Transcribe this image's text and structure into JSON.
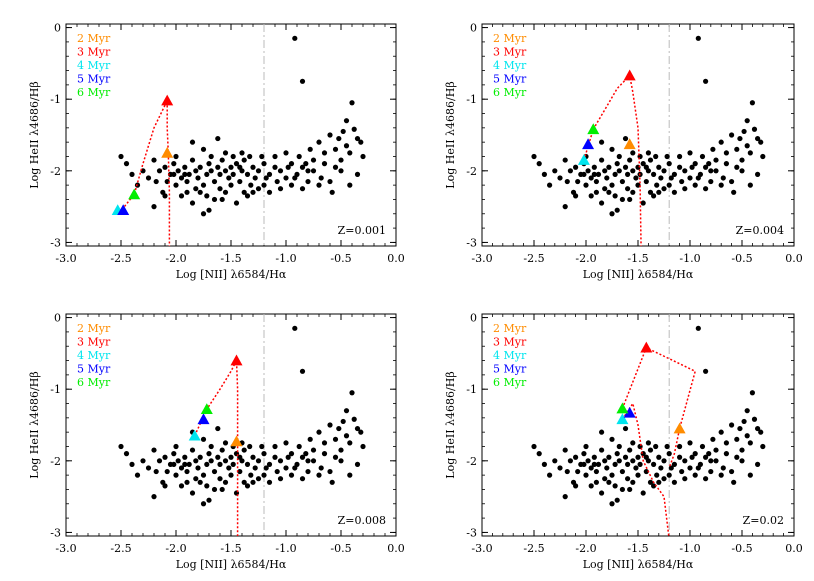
{
  "chart_data": [
    {
      "type": "scatter",
      "xlabel": "Log [NII] λ6584/Hα",
      "ylabel": "Log HeII λ4686/Hβ",
      "xlim": [
        -3.0,
        0.0
      ],
      "ylim": [
        -3.05,
        0.05
      ],
      "xticks": [
        "-3.0",
        "-2.5",
        "-2.0",
        "-1.5",
        "-1.0",
        "-0.5",
        "0.0"
      ],
      "yticks": [
        "0",
        "-1",
        "-2",
        "-3"
      ],
      "grid": false,
      "legend_position": "top-left",
      "annotation": "Z=0.001",
      "vline_x": -1.2,
      "series": [
        {
          "name": "2 Myr",
          "color": "#ff8c00",
          "x": -2.08,
          "y": -1.75
        },
        {
          "name": "3 Myr",
          "color": "#ff0000",
          "x": -2.08,
          "y": -1.02
        },
        {
          "name": "4 Myr",
          "color": "#00e5ee",
          "x": -2.53,
          "y": -2.55
        },
        {
          "name": "5 Myr",
          "color": "#0000ff",
          "x": -2.48,
          "y": -2.55
        },
        {
          "name": "6 Myr",
          "color": "#00ee00",
          "x": -2.38,
          "y": -2.33
        }
      ],
      "track": [
        [
          -2.53,
          -2.55
        ],
        [
          -2.48,
          -2.52
        ],
        [
          -2.38,
          -2.33
        ],
        [
          -2.3,
          -1.9
        ],
        [
          -2.2,
          -1.4
        ],
        [
          -2.08,
          -1.02
        ],
        [
          -2.08,
          -1.4
        ],
        [
          -2.07,
          -1.75
        ],
        [
          -2.06,
          -2.3
        ],
        [
          -2.06,
          -3.1
        ]
      ]
    },
    {
      "type": "scatter",
      "xlabel": "Log [NII] λ6584/Hα",
      "ylabel": "Log HeII λ4686/Hβ",
      "xlim": [
        -3.0,
        0.0
      ],
      "ylim": [
        -3.05,
        0.05
      ],
      "xticks": [
        "-3.0",
        "-2.5",
        "-2.0",
        "-1.5",
        "-1.0",
        "-0.5",
        "0.0"
      ],
      "yticks": [
        "0",
        "-1",
        "-2",
        "-3"
      ],
      "grid": false,
      "legend_position": "top-left",
      "annotation": "Z=0.004",
      "vline_x": -1.2,
      "series": [
        {
          "name": "2 Myr",
          "color": "#ff8c00",
          "x": -1.58,
          "y": -1.63
        },
        {
          "name": "3 Myr",
          "color": "#ff0000",
          "x": -1.58,
          "y": -0.67
        },
        {
          "name": "4 Myr",
          "color": "#00e5ee",
          "x": -2.02,
          "y": -1.85
        },
        {
          "name": "5 Myr",
          "color": "#0000ff",
          "x": -1.98,
          "y": -1.63
        },
        {
          "name": "6 Myr",
          "color": "#00ee00",
          "x": -1.93,
          "y": -1.42
        }
      ],
      "track": [
        [
          -2.02,
          -1.85
        ],
        [
          -1.93,
          -1.42
        ],
        [
          -1.8,
          -1.1
        ],
        [
          -1.7,
          -0.85
        ],
        [
          -1.58,
          -0.67
        ],
        [
          -1.55,
          -0.9
        ],
        [
          -1.5,
          -1.4
        ],
        [
          -1.48,
          -2.2
        ],
        [
          -1.47,
          -3.1
        ]
      ]
    },
    {
      "type": "scatter",
      "xlabel": "Log [NII] λ6584/Hα",
      "ylabel": "Log HeII λ4686/Hβ",
      "xlim": [
        -3.0,
        0.0
      ],
      "ylim": [
        -3.05,
        0.05
      ],
      "xticks": [
        "-3.0",
        "-2.5",
        "-2.0",
        "-1.5",
        "-1.0",
        "-0.5",
        "0.0"
      ],
      "yticks": [
        "0",
        "-1",
        "-2",
        "-3"
      ],
      "grid": false,
      "legend_position": "top-left",
      "annotation": "Z=0.008",
      "vline_x": -1.2,
      "series": [
        {
          "name": "2 Myr",
          "color": "#ff8c00",
          "x": -1.45,
          "y": -1.73
        },
        {
          "name": "3 Myr",
          "color": "#ff0000",
          "x": -1.45,
          "y": -0.6
        },
        {
          "name": "4 Myr",
          "color": "#00e5ee",
          "x": -1.83,
          "y": -1.65
        },
        {
          "name": "5 Myr",
          "color": "#0000ff",
          "x": -1.75,
          "y": -1.42
        },
        {
          "name": "6 Myr",
          "color": "#00ee00",
          "x": -1.72,
          "y": -1.28
        }
      ],
      "track": [
        [
          -1.83,
          -1.65
        ],
        [
          -1.72,
          -1.28
        ],
        [
          -1.6,
          -1.0
        ],
        [
          -1.5,
          -0.75
        ],
        [
          -1.45,
          -0.6
        ],
        [
          -1.44,
          -1.0
        ],
        [
          -1.44,
          -1.7
        ],
        [
          -1.44,
          -2.4
        ],
        [
          -1.44,
          -3.1
        ]
      ]
    },
    {
      "type": "scatter",
      "xlabel": "Log [NII] λ6584/Hα",
      "ylabel": "Log HeII λ4686/Hβ",
      "xlim": [
        -3.0,
        0.0
      ],
      "ylim": [
        -3.05,
        0.05
      ],
      "xticks": [
        "-3.0",
        "-2.5",
        "-2.0",
        "-1.5",
        "-1.0",
        "-0.5",
        "0.0"
      ],
      "yticks": [
        "0",
        "-1",
        "-2",
        "-3"
      ],
      "grid": false,
      "legend_position": "top-left",
      "annotation": "Z=0.02",
      "vline_x": -1.2,
      "series": [
        {
          "name": "2 Myr",
          "color": "#ff8c00",
          "x": -1.1,
          "y": -1.55
        },
        {
          "name": "3 Myr",
          "color": "#ff0000",
          "x": -1.42,
          "y": -0.42
        },
        {
          "name": "4 Myr",
          "color": "#00e5ee",
          "x": -1.65,
          "y": -1.42
        },
        {
          "name": "5 Myr",
          "color": "#0000ff",
          "x": -1.58,
          "y": -1.33
        },
        {
          "name": "6 Myr",
          "color": "#00ee00",
          "x": -1.65,
          "y": -1.27
        }
      ],
      "track": [
        [
          -1.65,
          -1.42
        ],
        [
          -1.55,
          -1.2
        ],
        [
          -1.5,
          -1.5
        ],
        [
          -1.45,
          -2.0
        ],
        [
          -1.35,
          -2.3
        ],
        [
          -1.25,
          -2.5
        ],
        [
          -1.2,
          -3.1
        ]
      ],
      "track2": [
        [
          -1.65,
          -1.27
        ],
        [
          -1.55,
          -0.9
        ],
        [
          -1.42,
          -0.42
        ],
        [
          -0.95,
          -0.75
        ],
        [
          -1.1,
          -1.55
        ],
        [
          -1.15,
          -1.9
        ],
        [
          -1.2,
          -2.1
        ]
      ]
    }
  ],
  "scatter_points": [
    [
      -0.92,
      -0.15
    ],
    [
      -0.85,
      -0.75
    ],
    [
      -0.4,
      -1.05
    ],
    [
      -0.45,
      -1.3
    ],
    [
      -0.38,
      -1.42
    ],
    [
      -0.35,
      -1.55
    ],
    [
      -0.3,
      -1.8
    ],
    [
      -0.6,
      -1.5
    ],
    [
      -0.55,
      -1.7
    ],
    [
      -0.5,
      -1.85
    ],
    [
      -0.7,
      -1.6
    ],
    [
      -0.65,
      -1.75
    ],
    [
      -0.75,
      -1.85
    ],
    [
      -0.8,
      -2.0
    ],
    [
      -0.85,
      -1.95
    ],
    [
      -0.9,
      -2.05
    ],
    [
      -0.95,
      -1.9
    ],
    [
      -1.0,
      -2.1
    ],
    [
      -1.05,
      -2.0
    ],
    [
      -1.1,
      -1.95
    ],
    [
      -1.15,
      -2.05
    ],
    [
      -1.2,
      -1.9
    ],
    [
      -1.25,
      -2.0
    ],
    [
      -1.28,
      -2.1
    ],
    [
      -1.3,
      -1.95
    ],
    [
      -1.32,
      -2.2
    ],
    [
      -1.35,
      -2.05
    ],
    [
      -1.38,
      -1.85
    ],
    [
      -1.4,
      -2.0
    ],
    [
      -1.42,
      -2.15
    ],
    [
      -1.45,
      -1.9
    ],
    [
      -1.48,
      -2.05
    ],
    [
      -1.5,
      -1.95
    ],
    [
      -1.52,
      -2.1
    ],
    [
      -1.55,
      -2.0
    ],
    [
      -1.58,
      -1.85
    ],
    [
      -1.6,
      -2.05
    ],
    [
      -1.62,
      -1.95
    ],
    [
      -1.65,
      -2.15
    ],
    [
      -1.68,
      -2.0
    ],
    [
      -1.7,
      -1.9
    ],
    [
      -1.72,
      -2.05
    ],
    [
      -1.75,
      -2.2
    ],
    [
      -1.78,
      -1.95
    ],
    [
      -1.8,
      -2.1
    ],
    [
      -1.82,
      -2.0
    ],
    [
      -1.85,
      -1.85
    ],
    [
      -1.88,
      -2.05
    ],
    [
      -1.9,
      -2.15
    ],
    [
      -1.92,
      -1.95
    ],
    [
      -1.95,
      -2.1
    ],
    [
      -1.98,
      -2.0
    ],
    [
      -2.0,
      -2.2
    ],
    [
      -2.02,
      -1.9
    ],
    [
      -2.05,
      -2.05
    ],
    [
      -2.08,
      -2.15
    ],
    [
      -2.1,
      -1.95
    ],
    [
      -2.12,
      -2.3
    ],
    [
      -2.15,
      -2.0
    ],
    [
      -2.2,
      -1.85
    ],
    [
      -2.25,
      -2.1
    ],
    [
      -2.3,
      -2.0
    ],
    [
      -2.35,
      -2.2
    ],
    [
      -1.95,
      -2.35
    ],
    [
      -1.85,
      -2.45
    ],
    [
      -1.75,
      -2.6
    ],
    [
      -1.7,
      -2.55
    ],
    [
      -1.65,
      -2.4
    ],
    [
      -1.55,
      -2.3
    ],
    [
      -1.45,
      -2.45
    ],
    [
      -1.35,
      -2.35
    ],
    [
      -1.25,
      -2.25
    ],
    [
      -1.15,
      -2.3
    ],
    [
      -2.2,
      -2.5
    ],
    [
      -2.5,
      -1.8
    ],
    [
      -2.45,
      -1.9
    ],
    [
      -2.4,
      -2.05
    ],
    [
      -1.62,
      -1.55
    ],
    [
      -1.75,
      -1.7
    ],
    [
      -1.85,
      -1.6
    ],
    [
      -0.45,
      -1.65
    ],
    [
      -0.5,
      -2.0
    ],
    [
      -0.55,
      -1.95
    ],
    [
      -0.6,
      -2.15
    ],
    [
      -0.65,
      -1.9
    ],
    [
      -0.7,
      -2.2
    ],
    [
      -0.75,
      -2.0
    ],
    [
      -0.8,
      -2.15
    ],
    [
      -0.85,
      -2.25
    ],
    [
      -0.35,
      -2.05
    ],
    [
      -0.42,
      -2.2
    ],
    [
      -0.58,
      -2.3
    ],
    [
      -1.0,
      -1.75
    ],
    [
      -1.1,
      -1.8
    ],
    [
      -1.2,
      -2.2
    ],
    [
      -1.3,
      -2.3
    ],
    [
      -1.4,
      -1.75
    ],
    [
      -1.55,
      -1.75
    ],
    [
      -1.68,
      -1.8
    ],
    [
      -1.78,
      -2.3
    ],
    [
      -1.9,
      -2.3
    ],
    [
      -2.0,
      -1.8
    ],
    [
      -2.1,
      -2.35
    ],
    [
      -1.6,
      -2.25
    ],
    [
      -1.5,
      -2.2
    ],
    [
      -1.38,
      -2.3
    ],
    [
      -1.22,
      -1.8
    ],
    [
      -1.05,
      -2.25
    ],
    [
      -0.95,
      -2.2
    ],
    [
      -0.88,
      -1.8
    ],
    [
      -0.78,
      -1.7
    ],
    [
      -0.68,
      -2.1
    ],
    [
      -0.52,
      -1.55
    ],
    [
      -0.48,
      -1.45
    ],
    [
      -0.42,
      -1.75
    ],
    [
      -0.32,
      -1.6
    ],
    [
      -1.82,
      -2.25
    ],
    [
      -1.72,
      -2.35
    ],
    [
      -1.58,
      -2.4
    ],
    [
      -1.92,
      -2.05
    ],
    [
      -2.02,
      -2.05
    ],
    [
      -2.18,
      -2.15
    ],
    [
      -1.48,
      -1.8
    ],
    [
      -1.42,
      -1.95
    ],
    [
      -1.33,
      -1.8
    ],
    [
      -1.18,
      -2.1
    ],
    [
      -1.08,
      -2.15
    ],
    [
      -0.98,
      -1.95
    ],
    [
      -0.92,
      -2.1
    ],
    [
      -0.82,
      -1.9
    ]
  ]
}
